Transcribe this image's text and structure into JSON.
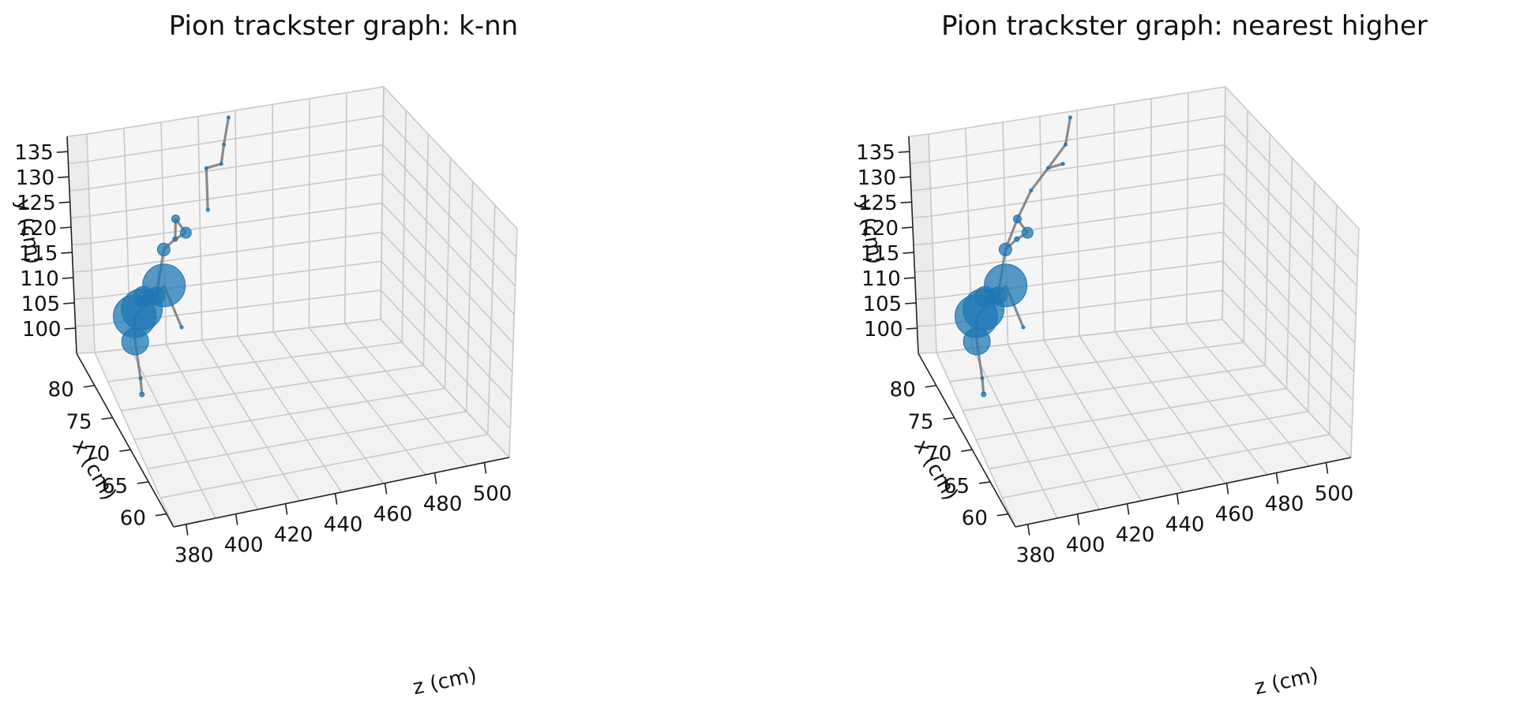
{
  "chart_data": [
    {
      "type": "scatter3d",
      "title": "Pion trackster graph: k-nn",
      "xlabel": "z (cm)",
      "ylabel": "x (cm)",
      "zlabel": "y (cm)",
      "z_ticks": [
        "380",
        "400",
        "420",
        "440",
        "460",
        "480",
        "500"
      ],
      "x_ticks": [
        "60",
        "65",
        "70",
        "75",
        "80"
      ],
      "y_ticks": [
        "100",
        "105",
        "110",
        "115",
        "120",
        "125",
        "130",
        "135"
      ],
      "xlim": [
        375,
        510
      ],
      "ylim": [
        58,
        85
      ],
      "zlim": [
        95,
        138
      ],
      "grid": true,
      "colors": {
        "node": "#1f77b4",
        "edge": "#808080"
      },
      "nodes": [
        {
          "z": 379,
          "x": 72,
          "y": 103,
          "size": 3
        },
        {
          "z": 381,
          "x": 74,
          "y": 103.5,
          "size": 2
        },
        {
          "z": 384,
          "x": 78,
          "y": 105.5,
          "size": 17
        },
        {
          "z": 388,
          "x": 81,
          "y": 106.5,
          "size": 27
        },
        {
          "z": 392,
          "x": 81.5,
          "y": 107,
          "size": 26
        },
        {
          "z": 395,
          "x": 83,
          "y": 107.5,
          "size": 13
        },
        {
          "z": 398,
          "x": 81,
          "y": 110,
          "size": 11
        },
        {
          "z": 403,
          "x": 82,
          "y": 110.5,
          "size": 27
        },
        {
          "z": 405,
          "x": 78,
          "y": 107,
          "size": 2
        },
        {
          "z": 406,
          "x": 84,
          "y": 115,
          "size": 8
        },
        {
          "z": 413,
          "x": 85,
          "y": 115.5,
          "size": 3
        },
        {
          "z": 418,
          "x": 85,
          "y": 116.5,
          "size": 7
        },
        {
          "z": 410,
          "x": 83,
          "y": 122,
          "size": 5
        },
        {
          "z": 425,
          "x": 83,
          "y": 123,
          "size": 2
        },
        {
          "z": 426,
          "x": 84,
          "y": 130,
          "size": 2
        },
        {
          "z": 433,
          "x": 84,
          "y": 130.5,
          "size": 2
        },
        {
          "z": 436,
          "x": 85,
          "y": 133,
          "size": 2
        },
        {
          "z": 440,
          "x": 86,
          "y": 137,
          "size": 2
        }
      ],
      "edges": [
        [
          0,
          1
        ],
        [
          1,
          2
        ],
        [
          2,
          3
        ],
        [
          3,
          4
        ],
        [
          4,
          5
        ],
        [
          5,
          6
        ],
        [
          6,
          7
        ],
        [
          7,
          8
        ],
        [
          6,
          9
        ],
        [
          9,
          10
        ],
        [
          10,
          11
        ],
        [
          11,
          12
        ],
        [
          12,
          10
        ],
        [
          13,
          14
        ],
        [
          14,
          15
        ],
        [
          15,
          16
        ],
        [
          16,
          17
        ]
      ]
    },
    {
      "type": "scatter3d",
      "title": "Pion trackster graph: nearest higher",
      "xlabel": "z (cm)",
      "ylabel": "x (cm)",
      "zlabel": "y (cm)",
      "z_ticks": [
        "380",
        "400",
        "420",
        "440",
        "460",
        "480",
        "500"
      ],
      "x_ticks": [
        "60",
        "65",
        "70",
        "75",
        "80"
      ],
      "y_ticks": [
        "100",
        "105",
        "110",
        "115",
        "120",
        "125",
        "130",
        "135"
      ],
      "xlim": [
        375,
        510
      ],
      "ylim": [
        58,
        85
      ],
      "zlim": [
        95,
        138
      ],
      "grid": true,
      "colors": {
        "node": "#1f77b4",
        "edge": "#808080"
      },
      "nodes": [
        {
          "z": 379,
          "x": 72,
          "y": 103,
          "size": 3
        },
        {
          "z": 381,
          "x": 74,
          "y": 103.5,
          "size": 2
        },
        {
          "z": 384,
          "x": 78,
          "y": 105.5,
          "size": 17
        },
        {
          "z": 388,
          "x": 81,
          "y": 106.5,
          "size": 27
        },
        {
          "z": 392,
          "x": 81.5,
          "y": 107,
          "size": 26
        },
        {
          "z": 395,
          "x": 83,
          "y": 107.5,
          "size": 13
        },
        {
          "z": 398,
          "x": 81,
          "y": 110,
          "size": 11
        },
        {
          "z": 403,
          "x": 82,
          "y": 110.5,
          "size": 27
        },
        {
          "z": 405,
          "x": 78,
          "y": 107,
          "size": 2
        },
        {
          "z": 406,
          "x": 84,
          "y": 115,
          "size": 8
        },
        {
          "z": 413,
          "x": 85,
          "y": 115.5,
          "size": 3
        },
        {
          "z": 418,
          "x": 85,
          "y": 116.5,
          "size": 7
        },
        {
          "z": 410,
          "x": 83,
          "y": 122,
          "size": 5
        },
        {
          "z": 418,
          "x": 84,
          "y": 126,
          "size": 2
        },
        {
          "z": 426,
          "x": 84,
          "y": 130,
          "size": 2
        },
        {
          "z": 433,
          "x": 84,
          "y": 130.5,
          "size": 2
        },
        {
          "z": 436,
          "x": 85,
          "y": 133,
          "size": 2
        },
        {
          "z": 440,
          "x": 86,
          "y": 137,
          "size": 2
        }
      ],
      "edges": [
        [
          0,
          1
        ],
        [
          1,
          2
        ],
        [
          2,
          3
        ],
        [
          3,
          4
        ],
        [
          4,
          5
        ],
        [
          5,
          6
        ],
        [
          6,
          7
        ],
        [
          7,
          8
        ],
        [
          6,
          9
        ],
        [
          9,
          10
        ],
        [
          10,
          11
        ],
        [
          11,
          12
        ],
        [
          9,
          12
        ],
        [
          12,
          13
        ],
        [
          13,
          14
        ],
        [
          14,
          15
        ],
        [
          14,
          16
        ],
        [
          16,
          17
        ]
      ]
    }
  ]
}
